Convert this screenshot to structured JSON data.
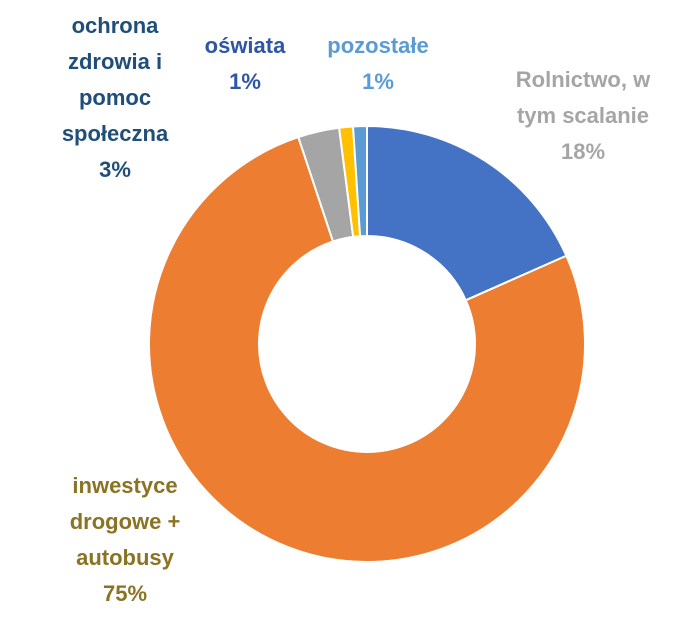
{
  "chart_data": {
    "type": "donut",
    "categories": [
      "Rolnictwo, w tym scalanie",
      "inwestyce drogowe + autobusy",
      "ochrona zdrowia i pomoc społeczna",
      "oświata",
      "pozostałe"
    ],
    "values": [
      18,
      75,
      3,
      1,
      1
    ],
    "value_labels": [
      "18%",
      "75%",
      "3%",
      "1%",
      "1%"
    ],
    "colors": [
      "#4472c4",
      "#ed7d31",
      "#a5a5a5",
      "#ffc000",
      "#5b9bd5"
    ],
    "label_colors": [
      "#a5a5a5",
      "#8a7322",
      "#1f4e79",
      "#2f55a4",
      "#5b9bd5"
    ]
  }
}
